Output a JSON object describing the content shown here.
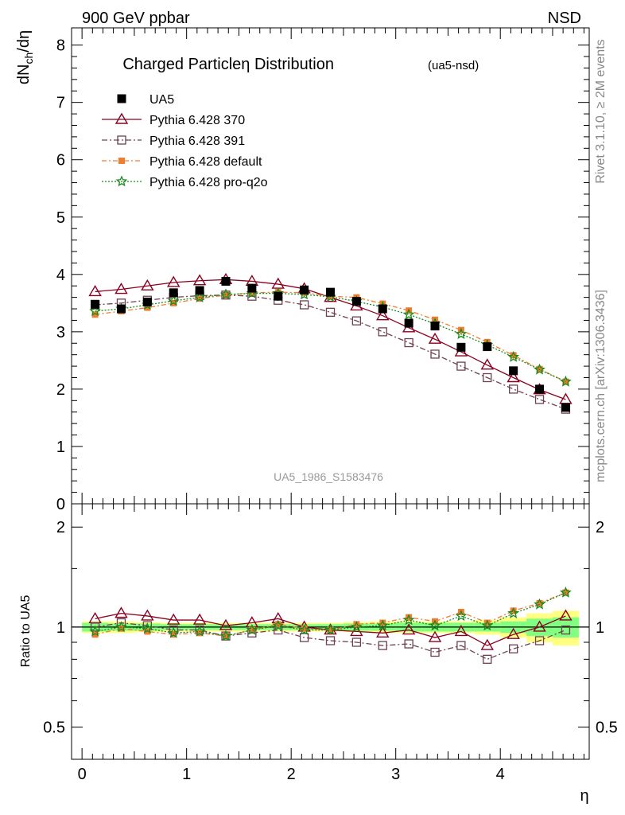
{
  "header": {
    "left": "900 GeV ppbar",
    "right": "NSD",
    "side_top": "Rivet 3.1.10, ≥ 2M events",
    "side_bottom": "mcplots.cern.ch [arXiv:1306.3436]"
  },
  "chart_data": [
    {
      "type": "line",
      "title": "Charged Particleη Distribution",
      "subtitle": "(ua5-nsd)",
      "ylabel": "dN_ch/dη",
      "watermark": "UA5_1986_S1583476",
      "ylim": [
        0,
        8.3
      ],
      "xlim": [
        -0.1,
        4.85
      ],
      "y_ticks": [
        0,
        1,
        2,
        3,
        4,
        5,
        6,
        7,
        8
      ],
      "legend_position": "top-left",
      "x": [
        0.125,
        0.375,
        0.625,
        0.875,
        1.125,
        1.375,
        1.625,
        1.875,
        2.125,
        2.375,
        2.625,
        2.875,
        3.125,
        3.375,
        3.625,
        3.875,
        4.125,
        4.375,
        4.625
      ],
      "series": [
        {
          "name": "UA5",
          "color": "#000000",
          "marker": "square",
          "values": [
            3.48,
            3.4,
            3.52,
            3.68,
            3.72,
            3.88,
            3.76,
            3.62,
            3.73,
            3.69,
            3.53,
            3.4,
            3.15,
            3.1,
            2.73,
            2.74,
            2.32,
            2.0,
            1.68
          ]
        },
        {
          "name": "Pythia 6.428 370",
          "color": "#8b0020",
          "marker": "triangle",
          "values": [
            3.7,
            3.74,
            3.8,
            3.86,
            3.89,
            3.91,
            3.88,
            3.83,
            3.75,
            3.6,
            3.45,
            3.28,
            3.07,
            2.87,
            2.65,
            2.42,
            2.2,
            1.99,
            1.82
          ]
        },
        {
          "name": "Pythia 6.428 391",
          "color": "#6e4050",
          "marker": "open-square",
          "values": [
            3.47,
            3.5,
            3.55,
            3.6,
            3.63,
            3.64,
            3.62,
            3.55,
            3.47,
            3.34,
            3.19,
            3.0,
            2.81,
            2.61,
            2.4,
            2.2,
            2.0,
            1.82,
            1.65
          ]
        },
        {
          "name": "Pythia 6.428 default",
          "color": "#f07d30",
          "marker": "filled-square",
          "values": [
            3.3,
            3.36,
            3.42,
            3.5,
            3.58,
            3.64,
            3.68,
            3.69,
            3.68,
            3.62,
            3.6,
            3.49,
            3.37,
            3.21,
            3.03,
            2.82,
            2.59,
            2.35,
            2.13
          ]
        },
        {
          "name": "Pythia 6.428 pro-q2o",
          "color": "#1a8a1a",
          "marker": "star",
          "values": [
            3.36,
            3.4,
            3.47,
            3.54,
            3.6,
            3.65,
            3.67,
            3.67,
            3.65,
            3.61,
            3.53,
            3.43,
            3.3,
            3.14,
            2.96,
            2.77,
            2.56,
            2.34,
            2.13
          ]
        }
      ]
    },
    {
      "type": "line",
      "ylabel": "Ratio to UA5",
      "xlabel": "η",
      "log_y": true,
      "ylim": [
        0.4,
        2.35
      ],
      "y_ticks": [
        0.5,
        1,
        2
      ],
      "xlim": [
        -0.1,
        4.85
      ],
      "x_ticks": [
        0,
        1,
        2,
        3,
        4
      ],
      "band_colors": {
        "inner": "#80ff80",
        "outer": "#ffff80"
      },
      "x": [
        0.125,
        0.375,
        0.625,
        0.875,
        1.125,
        1.375,
        1.625,
        1.875,
        2.125,
        2.375,
        2.625,
        2.875,
        3.125,
        3.375,
        3.625,
        3.875,
        4.125,
        4.375,
        4.625
      ],
      "band_inner": [
        0.03,
        0.025,
        0.025,
        0.02,
        0.02,
        0.02,
        0.02,
        0.02,
        0.02,
        0.02,
        0.025,
        0.025,
        0.03,
        0.03,
        0.03,
        0.03,
        0.04,
        0.06,
        0.07
      ],
      "band_outer": [
        0.04,
        0.04,
        0.035,
        0.03,
        0.03,
        0.03,
        0.03,
        0.03,
        0.03,
        0.03,
        0.035,
        0.04,
        0.04,
        0.04,
        0.04,
        0.05,
        0.07,
        0.1,
        0.12
      ],
      "series": [
        {
          "name": "Pythia 6.428 370",
          "color": "#8b0020",
          "marker": "triangle",
          "values": [
            1.06,
            1.1,
            1.08,
            1.05,
            1.05,
            1.01,
            1.03,
            1.06,
            1.0,
            0.98,
            0.97,
            0.96,
            0.98,
            0.93,
            0.97,
            0.88,
            0.95,
            1.0,
            1.08
          ]
        },
        {
          "name": "Pythia 6.428 391",
          "color": "#6e4050",
          "marker": "open-square",
          "values": [
            1.0,
            1.03,
            1.01,
            0.98,
            0.98,
            0.94,
            0.96,
            0.98,
            0.93,
            0.91,
            0.9,
            0.88,
            0.89,
            0.84,
            0.88,
            0.8,
            0.86,
            0.91,
            0.98
          ]
        },
        {
          "name": "Pythia 6.428 default",
          "color": "#f07d30",
          "marker": "filled-square",
          "values": [
            0.95,
            0.99,
            0.97,
            0.95,
            0.96,
            0.94,
            0.98,
            1.02,
            0.99,
            0.98,
            1.02,
            1.03,
            1.07,
            1.04,
            1.11,
            1.03,
            1.12,
            1.18,
            1.27
          ]
        },
        {
          "name": "Pythia 6.428 pro-q2o",
          "color": "#1a8a1a",
          "marker": "star",
          "values": [
            0.97,
            1.0,
            0.99,
            0.96,
            0.97,
            0.94,
            0.98,
            1.01,
            0.98,
            0.98,
            1.0,
            1.01,
            1.05,
            1.01,
            1.08,
            1.01,
            1.1,
            1.17,
            1.27
          ]
        }
      ]
    }
  ]
}
